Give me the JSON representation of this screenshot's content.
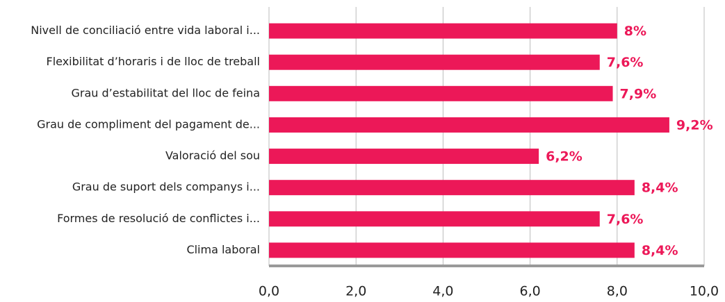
{
  "chart_data": {
    "type": "barh",
    "categories": [
      "Nivell de conciliació entre vida laboral i...",
      "Flexibilitat d’horaris i de lloc de treball",
      "Grau d’estabilitat del lloc de feina",
      "Grau de compliment del pagament de...",
      "Valoració del sou",
      "Grau de suport dels companys i...",
      "Formes de resolució de conflictes i...",
      "Clima laboral"
    ],
    "values": [
      8,
      7.6,
      7.9,
      9.2,
      6.2,
      8.4,
      7.6,
      8.4
    ],
    "value_labels": [
      "8%",
      "7,6%",
      "7,9%",
      "9,2%",
      "6,2%",
      "8,4%",
      "7,6%",
      "8,4%"
    ],
    "color": "#ec1858",
    "xlim": [
      0,
      10
    ],
    "xticks": [
      {
        "value": 0,
        "label": "0,0"
      },
      {
        "value": 2,
        "label": "2,0"
      },
      {
        "value": 4,
        "label": "4,0"
      },
      {
        "value": 6,
        "label": "6,0"
      },
      {
        "value": 8,
        "label": "8,0"
      },
      {
        "value": 10,
        "label": "10,0"
      }
    ],
    "grid": true
  }
}
